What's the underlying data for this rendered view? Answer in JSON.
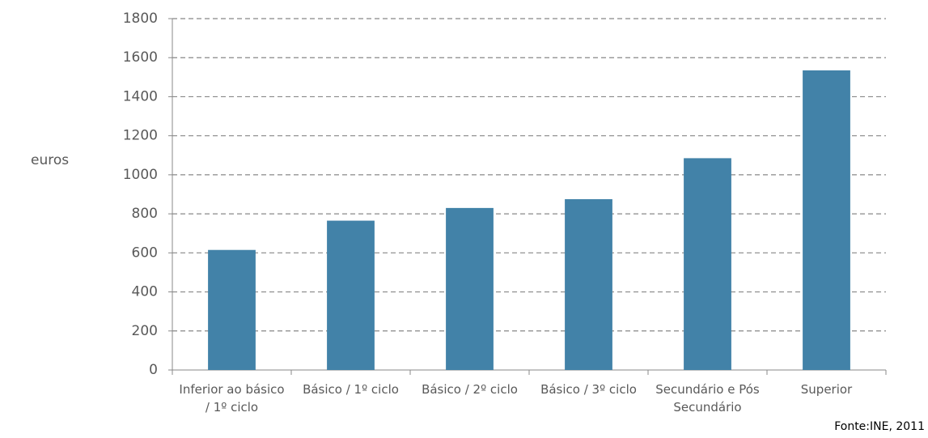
{
  "chart_data": {
    "type": "bar",
    "y_label": "euros",
    "source": "Fonte:INE, 2011",
    "categories": [
      "Inferior ao básico / 1º ciclo",
      "Básico / 1º ciclo",
      "Básico / 2º ciclo",
      "Básico / 3º ciclo",
      "Secundário e Pós Secundário",
      "Superior"
    ],
    "values": [
      615,
      765,
      830,
      875,
      1085,
      1535
    ],
    "color": "#4282a8",
    "ylim": [
      0,
      1800
    ],
    "yticks": [
      0,
      200,
      400,
      600,
      800,
      1000,
      1200,
      1400,
      1600,
      1800
    ],
    "grid": true
  }
}
